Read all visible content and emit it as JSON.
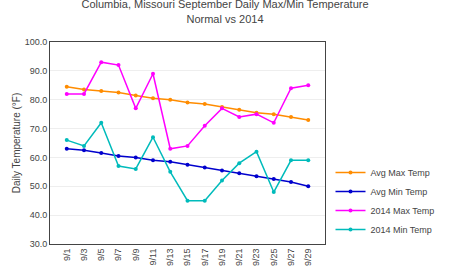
{
  "chart_data": {
    "type": "line",
    "title": "Columbia, Missouri September Daily Max/Min Temperature\nNormal vs 2014",
    "y_label": "Daily Temperature (°F)",
    "categories": [
      "9/1",
      "9/3",
      "9/5",
      "9/7",
      "9/9",
      "9/11",
      "9/13",
      "9/15",
      "9/17",
      "9/19",
      "9/21",
      "9/23",
      "9/25",
      "9/27",
      "9/29"
    ],
    "series": [
      {
        "name": "Avg Max Temp",
        "color": "#FF8C00",
        "values": [
          84.5,
          83.5,
          83.0,
          82.5,
          81.5,
          80.5,
          80.0,
          79.0,
          78.5,
          77.5,
          76.5,
          75.5,
          75.0,
          74.0,
          73.0
        ]
      },
      {
        "name": "Avg Min Temp",
        "color": "#0000CD",
        "values": [
          63.0,
          62.5,
          61.5,
          60.5,
          60.0,
          59.0,
          58.5,
          57.5,
          56.5,
          55.5,
          54.5,
          53.5,
          52.5,
          51.5,
          50.0
        ]
      },
      {
        "name": "2014 Max Temp",
        "color": "#FF00FF",
        "values": [
          82.0,
          82.0,
          93.0,
          92.0,
          77.0,
          89.0,
          63.0,
          64.0,
          71.0,
          77.0,
          74.0,
          75.0,
          72.0,
          84.0,
          85.0
        ]
      },
      {
        "name": "2014 Min Temp",
        "color": "#00BBBB",
        "values": [
          66.0,
          64.0,
          72.0,
          57.0,
          56.0,
          67.0,
          55.0,
          45.0,
          45.0,
          52.0,
          58.0,
          62.0,
          48.0,
          59.0,
          59.0
        ]
      }
    ],
    "ylim": [
      30,
      100
    ],
    "yticks": [
      {
        "value": 30,
        "label": "30.0"
      },
      {
        "value": 40,
        "label": "40.0"
      },
      {
        "value": 50,
        "label": "50.0"
      },
      {
        "value": 60,
        "label": "60.0"
      },
      {
        "value": 70,
        "label": "70.0"
      },
      {
        "value": 80,
        "label": "80.0"
      },
      {
        "value": 90,
        "label": "90.0"
      },
      {
        "value": 100,
        "label": "100.0"
      }
    ],
    "grid": true,
    "legend": "lower right",
    "marker": "circle",
    "line_style": "solid"
  }
}
